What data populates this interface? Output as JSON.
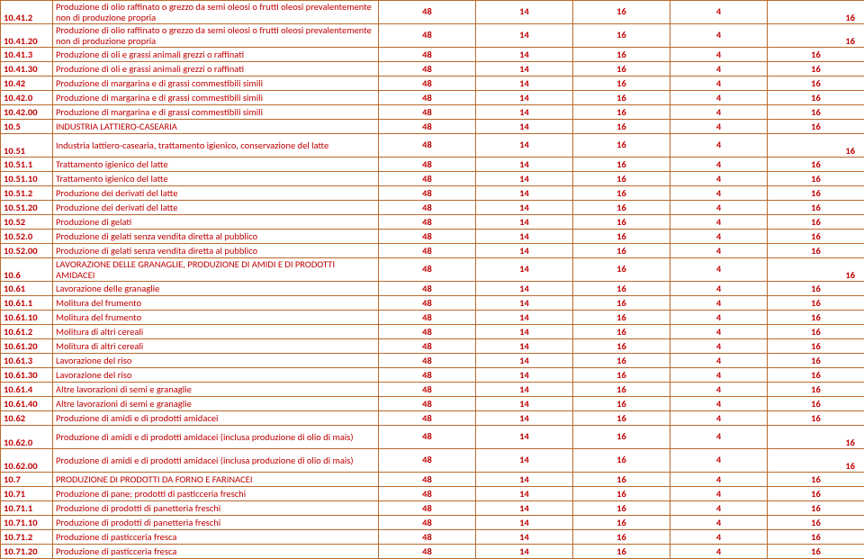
{
  "columns": [
    "code",
    "desc",
    "c1",
    "c2",
    "c3",
    "c4",
    "c5"
  ],
  "vals": [
    "48",
    "14",
    "16",
    "4",
    "16"
  ],
  "rows": [
    {
      "code": "10.41.2",
      "desc": "Produzione di olio raffinato o grezzo da semi oleosi o frutti oleosi prevalentemente non di produzione propria",
      "tall": true
    },
    {
      "code": "10.41.20",
      "desc": "Produzione di olio raffinato o grezzo da semi oleosi o frutti oleosi prevalentemente non di produzione propria",
      "tall": true
    },
    {
      "code": "10.41.3",
      "desc": "Produzione di oli e grassi animali grezzi o raffinati"
    },
    {
      "code": "10.41.30",
      "desc": "Produzione di oli e grassi animali grezzi o raffinati"
    },
    {
      "code": "10.42",
      "desc": "Produzione di margarina e di grassi commestibili simili"
    },
    {
      "code": "10.42.0",
      "desc": "Produzione di margarina e di grassi commestibili simili"
    },
    {
      "code": "10.42.00",
      "desc": "Produzione di margarina e di grassi commestibili simili"
    },
    {
      "code": "10.5",
      "desc": "INDUSTRIA LATTIERO-CASEARIA"
    },
    {
      "code": "10.51",
      "desc": "Industria lattiero-casearia, trattamento igienico, conservazione del latte",
      "tall": true
    },
    {
      "code": "10.51.1",
      "desc": "Trattamento igienico del latte"
    },
    {
      "code": "10.51.10",
      "desc": "Trattamento igienico del latte"
    },
    {
      "code": "10.51.2",
      "desc": "Produzione dei derivati del latte"
    },
    {
      "code": "10.51.20",
      "desc": "Produzione dei derivati del latte"
    },
    {
      "code": "10.52",
      "desc": "Produzione di gelati"
    },
    {
      "code": "10.52.0",
      "desc": "Produzione di gelati senza vendita diretta al pubblico"
    },
    {
      "code": "10.52.00",
      "desc": "Produzione di gelati senza vendita diretta al pubblico"
    },
    {
      "code": "10.6",
      "desc": "LAVORAZIONE DELLE GRANAGLIE, PRODUZIONE DI AMIDI E DI PRODOTTI AMIDACEI",
      "tall": true
    },
    {
      "code": "10.61",
      "desc": "Lavorazione delle granaglie"
    },
    {
      "code": "10.61.1",
      "desc": "Molitura del frumento"
    },
    {
      "code": "10.61.10",
      "desc": "Molitura del frumento"
    },
    {
      "code": "10.61.2",
      "desc": "Molitura di altri cereali"
    },
    {
      "code": "10.61.20",
      "desc": "Molitura di altri cereali"
    },
    {
      "code": "10.61.3",
      "desc": "Lavorazione del riso"
    },
    {
      "code": "10.61.30",
      "desc": "Lavorazione del riso"
    },
    {
      "code": "10.61.4",
      "desc": "Altre lavorazioni di semi e granaglie"
    },
    {
      "code": "10.61.40",
      "desc": "Altre lavorazioni di semi e granaglie"
    },
    {
      "code": "10.62",
      "desc": "Produzione di amidi e di prodotti amidacei"
    },
    {
      "code": "10.62.0",
      "desc": "Produzione di amidi e di prodotti amidacei (inclusa produzione di olio di mais)",
      "tall": true
    },
    {
      "code": "10.62.00",
      "desc": "Produzione di amidi e di prodotti amidacei (inclusa produzione di olio di mais)",
      "tall": true
    },
    {
      "code": "10.7",
      "desc": "PRODUZIONE DI PRODOTTI DA FORNO E FARINACEI"
    },
    {
      "code": "10.71",
      "desc": "Produzione di pane; prodotti di pasticceria freschi"
    },
    {
      "code": "10.71.1",
      "desc": "Produzione di prodotti di panetteria freschi"
    },
    {
      "code": "10.71.10",
      "desc": "Produzione di prodotti di panetteria freschi"
    },
    {
      "code": "10.71.2",
      "desc": "Produzione di pasticceria fresca"
    },
    {
      "code": "10.71.20",
      "desc": "Produzione di pasticceria fresca"
    }
  ]
}
